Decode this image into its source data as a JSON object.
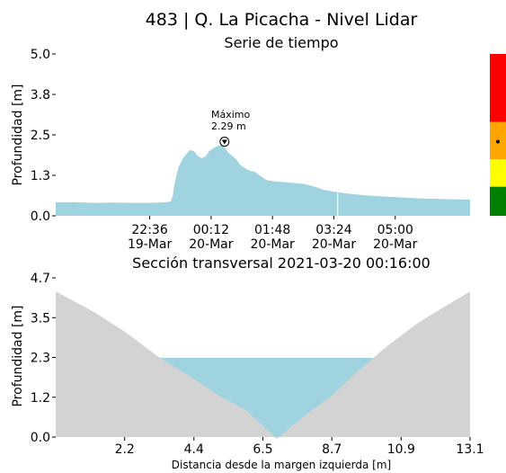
{
  "figure": {
    "title": "483 | Q. La Picacha - Nivel Lidar"
  },
  "chart_data": [
    {
      "type": "area",
      "title": "Serie de tiempo",
      "xlabel": "",
      "ylabel": "Profundidad [m]",
      "ylim": [
        0,
        5
      ],
      "xlim": [
        0,
        10.8
      ],
      "x_unit": "hours since 20:09 19-Mar",
      "yticks": [
        {
          "value": 0,
          "label": "0.0"
        },
        {
          "value": 1.25,
          "label": "1.3"
        },
        {
          "value": 2.5,
          "label": "2.5"
        },
        {
          "value": 3.75,
          "label": "3.8"
        },
        {
          "value": 5,
          "label": "5.0"
        }
      ],
      "xticks": [
        {
          "t": 2.45,
          "time": "22:36",
          "date": "19-Mar"
        },
        {
          "t": 4.05,
          "time": "00:12",
          "date": "20-Mar"
        },
        {
          "t": 5.65,
          "time": "01:48",
          "date": "20-Mar"
        },
        {
          "t": 7.25,
          "time": "03:24",
          "date": "20-Mar"
        },
        {
          "t": 8.85,
          "time": "05:00",
          "date": "20-Mar"
        }
      ],
      "series": [
        {
          "name": "Nivel",
          "color": "#9fd3e0",
          "x": [
            0,
            0.5,
            1.0,
            1.5,
            2.0,
            2.5,
            2.9,
            3.0,
            3.05,
            3.1,
            3.2,
            3.3,
            3.4,
            3.5,
            3.6,
            3.7,
            3.8,
            3.9,
            4.0,
            4.1,
            4.2,
            4.3,
            4.4,
            4.5,
            4.6,
            4.7,
            4.8,
            5.0,
            5.2,
            5.35,
            5.5,
            5.7,
            6.0,
            6.5,
            6.8,
            7.0,
            7.5,
            8.0,
            8.5,
            9.0,
            9.5,
            10.0,
            10.8
          ],
          "values": [
            0.42,
            0.42,
            0.4,
            0.41,
            0.4,
            0.4,
            0.42,
            0.45,
            0.62,
            1.0,
            1.5,
            1.75,
            1.9,
            2.03,
            2.0,
            1.85,
            1.78,
            1.82,
            2.0,
            2.08,
            2.15,
            2.18,
            2.12,
            1.95,
            1.85,
            1.75,
            1.58,
            1.42,
            1.35,
            1.22,
            1.1,
            1.06,
            1.04,
            0.98,
            0.88,
            0.8,
            0.7,
            0.64,
            0.6,
            0.57,
            0.54,
            0.52,
            0.5
          ]
        }
      ],
      "annotation": {
        "line1": "Máximo",
        "line2": "2.29 m",
        "x": 4.4,
        "y": 2.29
      },
      "alert_bar": {
        "colors": [
          "#008000",
          "#ffff00",
          "#ffa500",
          "#ff0000"
        ],
        "bounds": [
          0,
          0.9,
          1.75,
          2.9,
          5
        ],
        "marker_value": 2.29
      }
    },
    {
      "type": "area",
      "title": "Sección transversal 2021-03-20 00:16:00",
      "xlabel": "Distancia desde la margen izquierda [m]",
      "ylabel": "Profundidad [m]",
      "xlim": [
        0,
        13.1
      ],
      "ylim": [
        0,
        4.7
      ],
      "yticks": [
        {
          "value": 0,
          "label": "0.0"
        },
        {
          "value": 1.175,
          "label": "1.2"
        },
        {
          "value": 2.35,
          "label": "2.3"
        },
        {
          "value": 3.525,
          "label": "3.5"
        },
        {
          "value": 4.7,
          "label": "4.7"
        }
      ],
      "xticks": [
        {
          "value": 2.18,
          "label": "2.2"
        },
        {
          "value": 4.37,
          "label": "4.4"
        },
        {
          "value": 6.55,
          "label": "6.5"
        },
        {
          "value": 8.73,
          "label": "8.7"
        },
        {
          "value": 10.92,
          "label": "10.9"
        },
        {
          "value": 13.1,
          "label": "13.1"
        }
      ],
      "bed": {
        "color": "#d3d3d3",
        "x": [
          0,
          1.2,
          2.2,
          3.2,
          4.4,
          5.2,
          6.0,
          6.6,
          7.0,
          7.5,
          8.0,
          8.7,
          9.5,
          10.5,
          11.5,
          12.3,
          13.1
        ],
        "y": [
          4.3,
          3.7,
          3.1,
          2.4,
          1.7,
          1.2,
          0.8,
          0.3,
          -0.05,
          0.35,
          0.72,
          1.2,
          1.9,
          2.7,
          3.4,
          3.85,
          4.3
        ]
      },
      "water": {
        "color": "#9fd3e0",
        "level": 2.34
      }
    }
  ]
}
